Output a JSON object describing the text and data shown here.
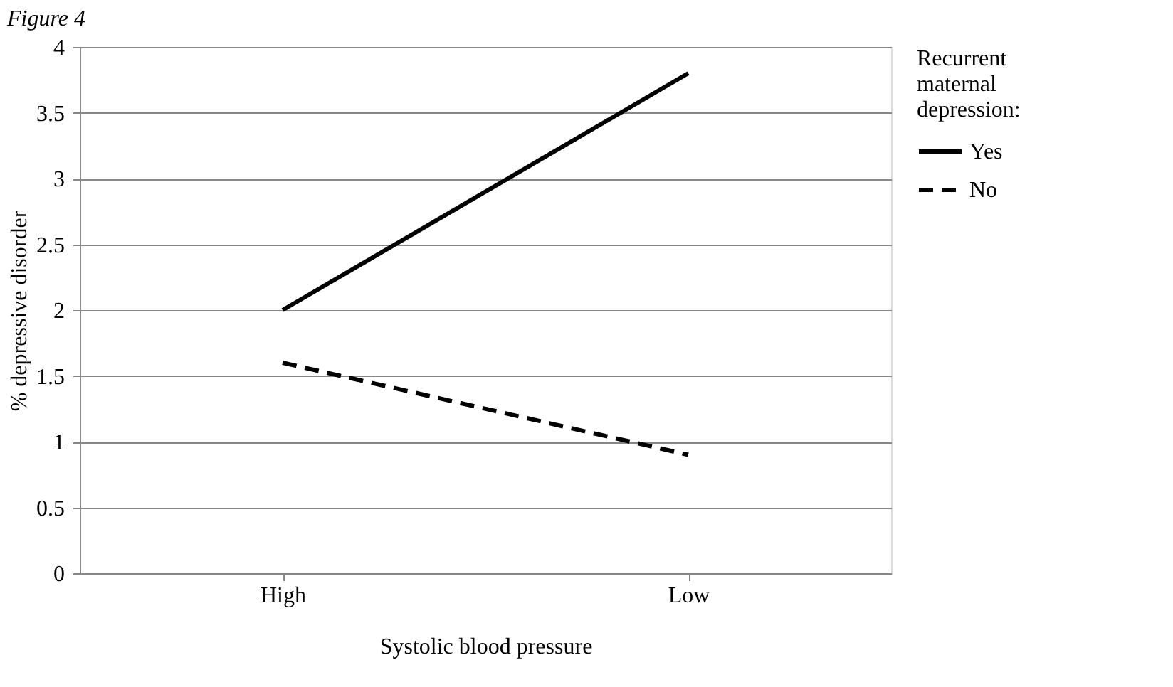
{
  "chart_data": {
    "type": "line",
    "title": "Figure 4",
    "xlabel": "Systolic blood pressure",
    "ylabel": "% depressive disorder",
    "legend_title": "Recurrent maternal depression:",
    "categories": [
      "High",
      "Low"
    ],
    "series": [
      {
        "name": "Yes",
        "color": "#000000",
        "line_style": "solid",
        "values": [
          2.0,
          3.8
        ]
      },
      {
        "name": "No",
        "color": "#000000",
        "line_style": "dashed",
        "values": [
          1.6,
          0.9
        ]
      }
    ],
    "ylim": [
      0,
      4
    ],
    "yticks": [
      0,
      0.5,
      1,
      1.5,
      2,
      2.5,
      3,
      3.5,
      4
    ],
    "grid": "y",
    "legend": "right",
    "marker": "none"
  }
}
